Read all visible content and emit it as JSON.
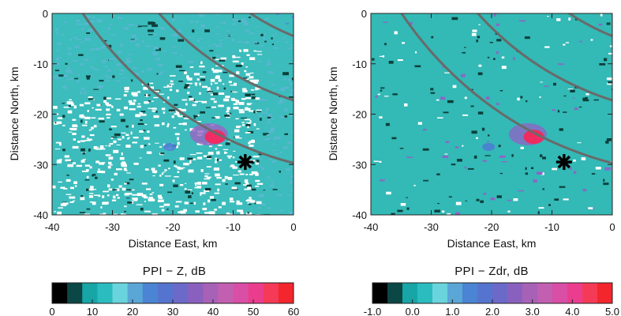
{
  "chart_data": [
    {
      "type": "heatmap",
      "panel": "left",
      "xlabel": "Distance East, km",
      "ylabel": "Distance North, km",
      "xlim": [
        -40,
        0
      ],
      "ylim": [
        -40,
        0
      ],
      "x_ticks": [
        "-40",
        "-30",
        "-20",
        "-10",
        "0"
      ],
      "y_ticks": [
        "0",
        "-10",
        "-20",
        "-30",
        "-40"
      ],
      "x_tick_values": [
        -40,
        -30,
        -20,
        -10,
        0
      ],
      "y_tick_values": [
        0,
        -10,
        -20,
        -30,
        -40
      ],
      "range_rings_km": [
        30,
        40,
        50,
        60
      ],
      "ring_center_km": [
        15,
        40
      ],
      "marker": {
        "symbol": "asterisk",
        "x": -8,
        "y": -29.5
      },
      "colorbar": {
        "title": "PPI − Z, dB",
        "tick_labels": [
          "0",
          "10",
          "20",
          "30",
          "40",
          "50",
          "60"
        ],
        "min": 0,
        "max": 60,
        "colors": [
          "#000000",
          "#0b4745",
          "#17a5a6",
          "#2bbcc0",
          "#6ad4dc",
          "#5aa6d6",
          "#4a84d2",
          "#5574cf",
          "#6b6ac8",
          "#8a60bf",
          "#a761b7",
          "#c25fb0",
          "#d84fa5",
          "#eb3d8e",
          "#f43a56",
          "#f2262c"
        ]
      },
      "field_colors": {
        "background": "#3cbcbc",
        "mid": "#57b8cf",
        "blue": "#4d7fd2",
        "purple": "#9a63c2",
        "core": "#ef2d64",
        "noecho": "#ffffff",
        "dark": "#0d3f3b"
      }
    },
    {
      "type": "heatmap",
      "panel": "right",
      "xlabel": "Distance East, km",
      "ylabel": "Distance North, km",
      "xlim": [
        -40,
        0
      ],
      "ylim": [
        -40,
        0
      ],
      "x_ticks": [
        "-40",
        "-30",
        "-20",
        "-10",
        "0"
      ],
      "y_ticks": [
        "0",
        "-10",
        "-20",
        "-30",
        "-40"
      ],
      "x_tick_values": [
        -40,
        -30,
        -20,
        -10,
        0
      ],
      "y_tick_values": [
        0,
        -10,
        -20,
        -30,
        -40
      ],
      "range_rings_km": [
        30,
        40,
        50,
        60
      ],
      "ring_center_km": [
        15,
        40
      ],
      "marker": {
        "symbol": "asterisk",
        "x": -8,
        "y": -29.5
      },
      "colorbar": {
        "title": "PPI − Zdr, dB",
        "tick_labels": [
          "-1.0",
          "0.0",
          "1.0",
          "2.0",
          "3.0",
          "4.0",
          "5.0"
        ],
        "min": -1,
        "max": 5,
        "colors": [
          "#000000",
          "#0b4745",
          "#17a5a6",
          "#2bbcc0",
          "#6ad4dc",
          "#5aa6d6",
          "#4a84d2",
          "#5574cf",
          "#6b6ac8",
          "#8a60bf",
          "#a761b7",
          "#c25fb0",
          "#d84fa5",
          "#eb3d8e",
          "#f43a56",
          "#f2262c"
        ]
      },
      "field_colors": {
        "background": "#33b9b6",
        "mid": "#56b6d2",
        "blue": "#4a7fd3",
        "purple": "#8c66c6",
        "core": "#ee2c5f",
        "noecho": "#ffffff",
        "dark": "#0d3f3b"
      }
    }
  ]
}
